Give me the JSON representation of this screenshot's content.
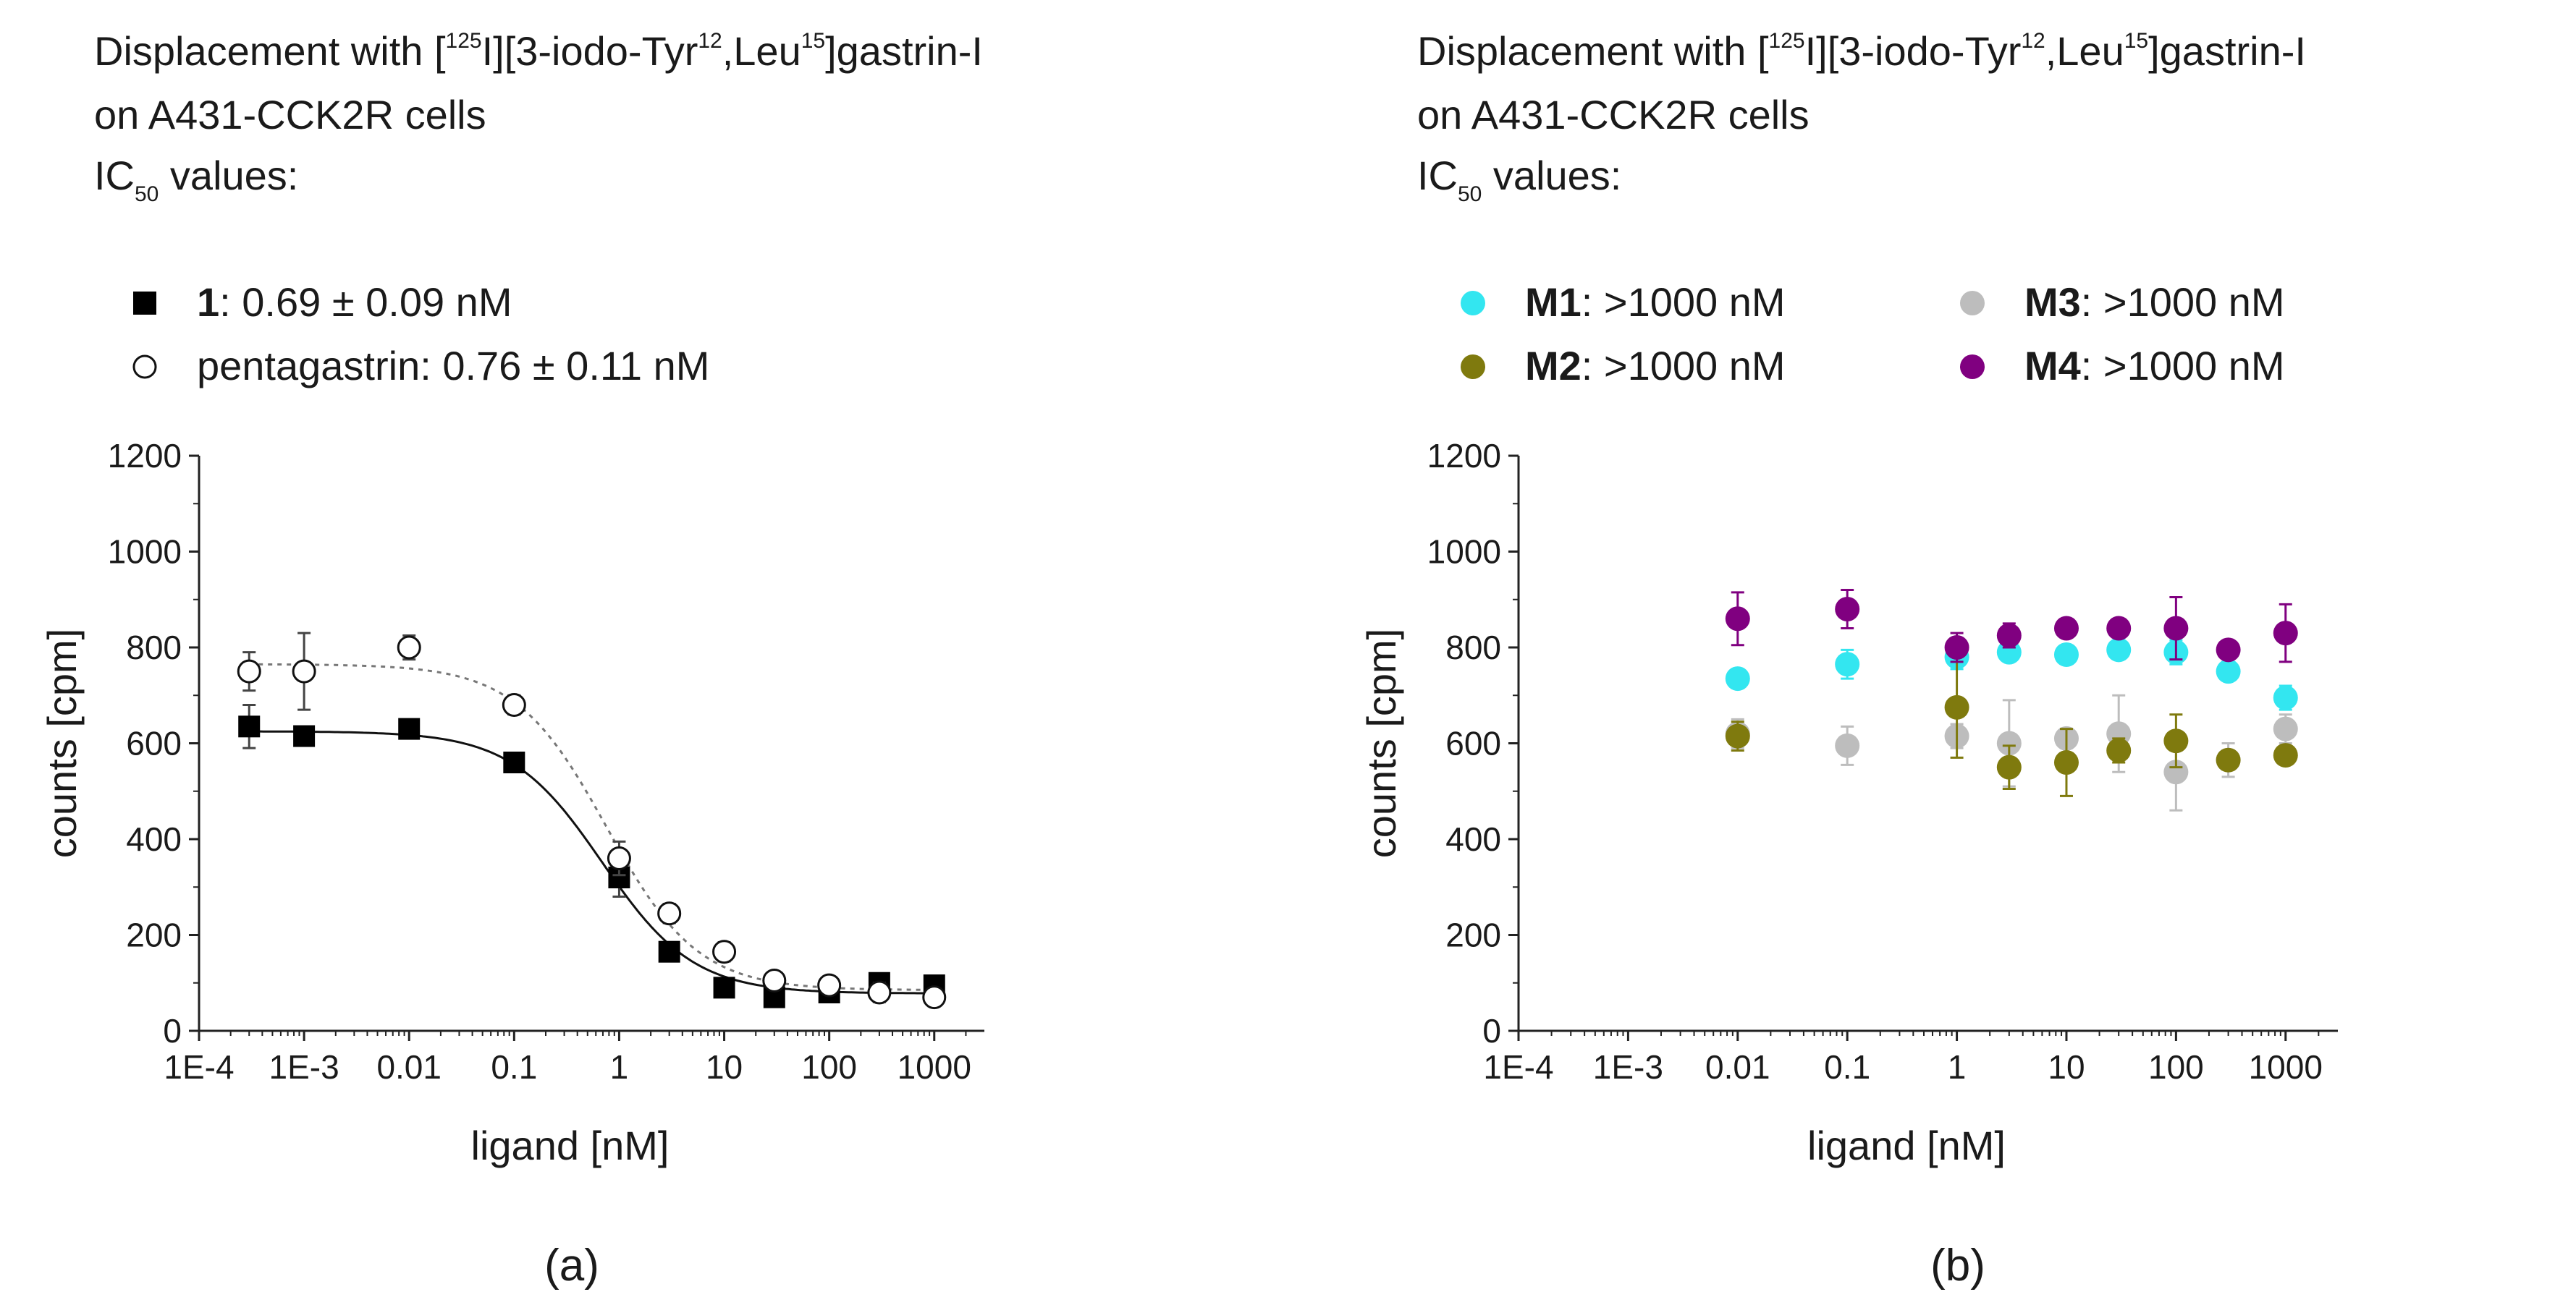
{
  "chart_data": [
    {
      "id": "a",
      "panel_label": "(a)",
      "type": "scatter",
      "title": {
        "line1": {
          "pre": "Displacement with [",
          "sup1": "125",
          "mid1": "I][3-iodo-Tyr",
          "sup2": "12",
          "mid2": ",Leu",
          "sup3": "15",
          "post": "]gastrin-I"
        },
        "line2": "on A431-CCK2R cells",
        "line3": {
          "main": "IC",
          "sub": "50",
          "post": " values:"
        }
      },
      "xlabel": "ligand [nM]",
      "ylabel": "counts [cpm]",
      "x_scale": "log",
      "xlim": [
        0.0001,
        3000
      ],
      "ylim": [
        0,
        1200
      ],
      "x_ticks": [
        0.0001,
        0.001,
        0.01,
        0.1,
        1,
        10,
        100,
        1000
      ],
      "x_tick_labels": [
        "1E-4",
        "1E-3",
        "0.01",
        "0.1",
        "1",
        "10",
        "100",
        "1000"
      ],
      "y_ticks": [
        0,
        200,
        400,
        600,
        800,
        1000,
        1200
      ],
      "y_tick_labels": [
        "0",
        "200",
        "400",
        "600",
        "800",
        "1000",
        "1200"
      ],
      "legend_columns": 1,
      "series": [
        {
          "name": "1",
          "legend_label": {
            "bold": "1",
            "rest": ": 0.69 ± 0.09 nM"
          },
          "marker": "square-filled",
          "color": "#000000",
          "x": [
            0.0003,
            0.001,
            0.01,
            0.1,
            1,
            3,
            10,
            30,
            100,
            300,
            1000
          ],
          "y": [
            635,
            615,
            630,
            560,
            320,
            165,
            90,
            70,
            80,
            100,
            95
          ],
          "yerr": [
            45,
            10,
            15,
            12,
            40,
            15,
            12,
            12,
            10,
            12,
            10
          ],
          "fit": {
            "style": "solid",
            "top": 625,
            "bottom": 78,
            "ic50": 0.69,
            "hill": 1
          }
        },
        {
          "name": "pentagastrin",
          "legend_label": {
            "bold": "",
            "rest": "pentagastrin: 0.76 ± 0.11 nM"
          },
          "marker": "circle-open",
          "color": "#000000",
          "x": [
            0.0003,
            0.001,
            0.01,
            0.1,
            1,
            3,
            10,
            30,
            100,
            300,
            1000
          ],
          "y": [
            750,
            750,
            800,
            680,
            360,
            245,
            165,
            105,
            95,
            80,
            70
          ],
          "yerr": [
            40,
            80,
            25,
            20,
            35,
            20,
            20,
            15,
            12,
            20,
            15
          ],
          "fit": {
            "style": "dotted",
            "top": 765,
            "bottom": 85,
            "ic50": 0.76,
            "hill": 1
          }
        }
      ]
    },
    {
      "id": "b",
      "panel_label": "(b)",
      "type": "scatter",
      "title": {
        "line1": {
          "pre": "Displacement with [",
          "sup1": "125",
          "mid1": "I][3-iodo-Tyr",
          "sup2": "12",
          "mid2": ",Leu",
          "sup3": "15",
          "post": "]gastrin-I"
        },
        "line2": "on A431-CCK2R cells",
        "line3": {
          "main": "IC",
          "sub": "50",
          "post": " values:"
        }
      },
      "xlabel": "ligand [nM]",
      "ylabel": "counts [cpm]",
      "x_scale": "log",
      "xlim": [
        0.0001,
        3000
      ],
      "ylim": [
        0,
        1200
      ],
      "x_ticks": [
        0.0001,
        0.001,
        0.01,
        0.1,
        1,
        10,
        100,
        1000
      ],
      "x_tick_labels": [
        "1E-4",
        "1E-3",
        "0.01",
        "0.1",
        "1",
        "10",
        "100",
        "1000"
      ],
      "y_ticks": [
        0,
        200,
        400,
        600,
        800,
        1000,
        1200
      ],
      "y_tick_labels": [
        "0",
        "200",
        "400",
        "600",
        "800",
        "1000",
        "1200"
      ],
      "legend_columns": 2,
      "series": [
        {
          "name": "M1",
          "legend_label": {
            "bold": "M1",
            "rest": ": >1000 nM"
          },
          "marker": "circle-filled",
          "color": "#33e6f0",
          "x": [
            0.01,
            0.1,
            1,
            3,
            10,
            30,
            100,
            300,
            1000
          ],
          "y": [
            735,
            765,
            780,
            790,
            785,
            795,
            790,
            750,
            695
          ],
          "yerr": [
            20,
            30,
            25,
            15,
            10,
            12,
            25,
            15,
            25
          ]
        },
        {
          "name": "M3",
          "legend_label": {
            "bold": "M3",
            "rest": ": >1000 nM"
          },
          "marker": "circle-filled",
          "color": "#bdbdbd",
          "x": [
            0.01,
            0.1,
            1,
            3,
            10,
            30,
            100,
            300,
            1000
          ],
          "y": [
            620,
            595,
            615,
            600,
            610,
            620,
            540,
            565,
            630
          ],
          "yerr": [
            30,
            40,
            25,
            90,
            20,
            80,
            80,
            35,
            30
          ]
        },
        {
          "name": "M2",
          "legend_label": {
            "bold": "M2",
            "rest": ": >1000 nM"
          },
          "marker": "circle-filled",
          "color": "#7f7a0e",
          "x": [
            0.01,
            1,
            3,
            10,
            30,
            100,
            300,
            1000
          ],
          "y": [
            615,
            675,
            550,
            560,
            585,
            605,
            565,
            575
          ],
          "yerr": [
            30,
            105,
            45,
            70,
            25,
            55,
            20,
            15
          ]
        },
        {
          "name": "M4",
          "legend_label": {
            "bold": "M4",
            "rest": ": >1000 nM"
          },
          "marker": "circle-filled",
          "color": "#800080",
          "x": [
            0.01,
            0.1,
            1,
            3,
            10,
            30,
            100,
            300,
            1000
          ],
          "y": [
            860,
            880,
            800,
            825,
            840,
            840,
            840,
            795,
            830
          ],
          "yerr": [
            55,
            40,
            30,
            25,
            15,
            15,
            65,
            15,
            60
          ]
        }
      ]
    }
  ]
}
